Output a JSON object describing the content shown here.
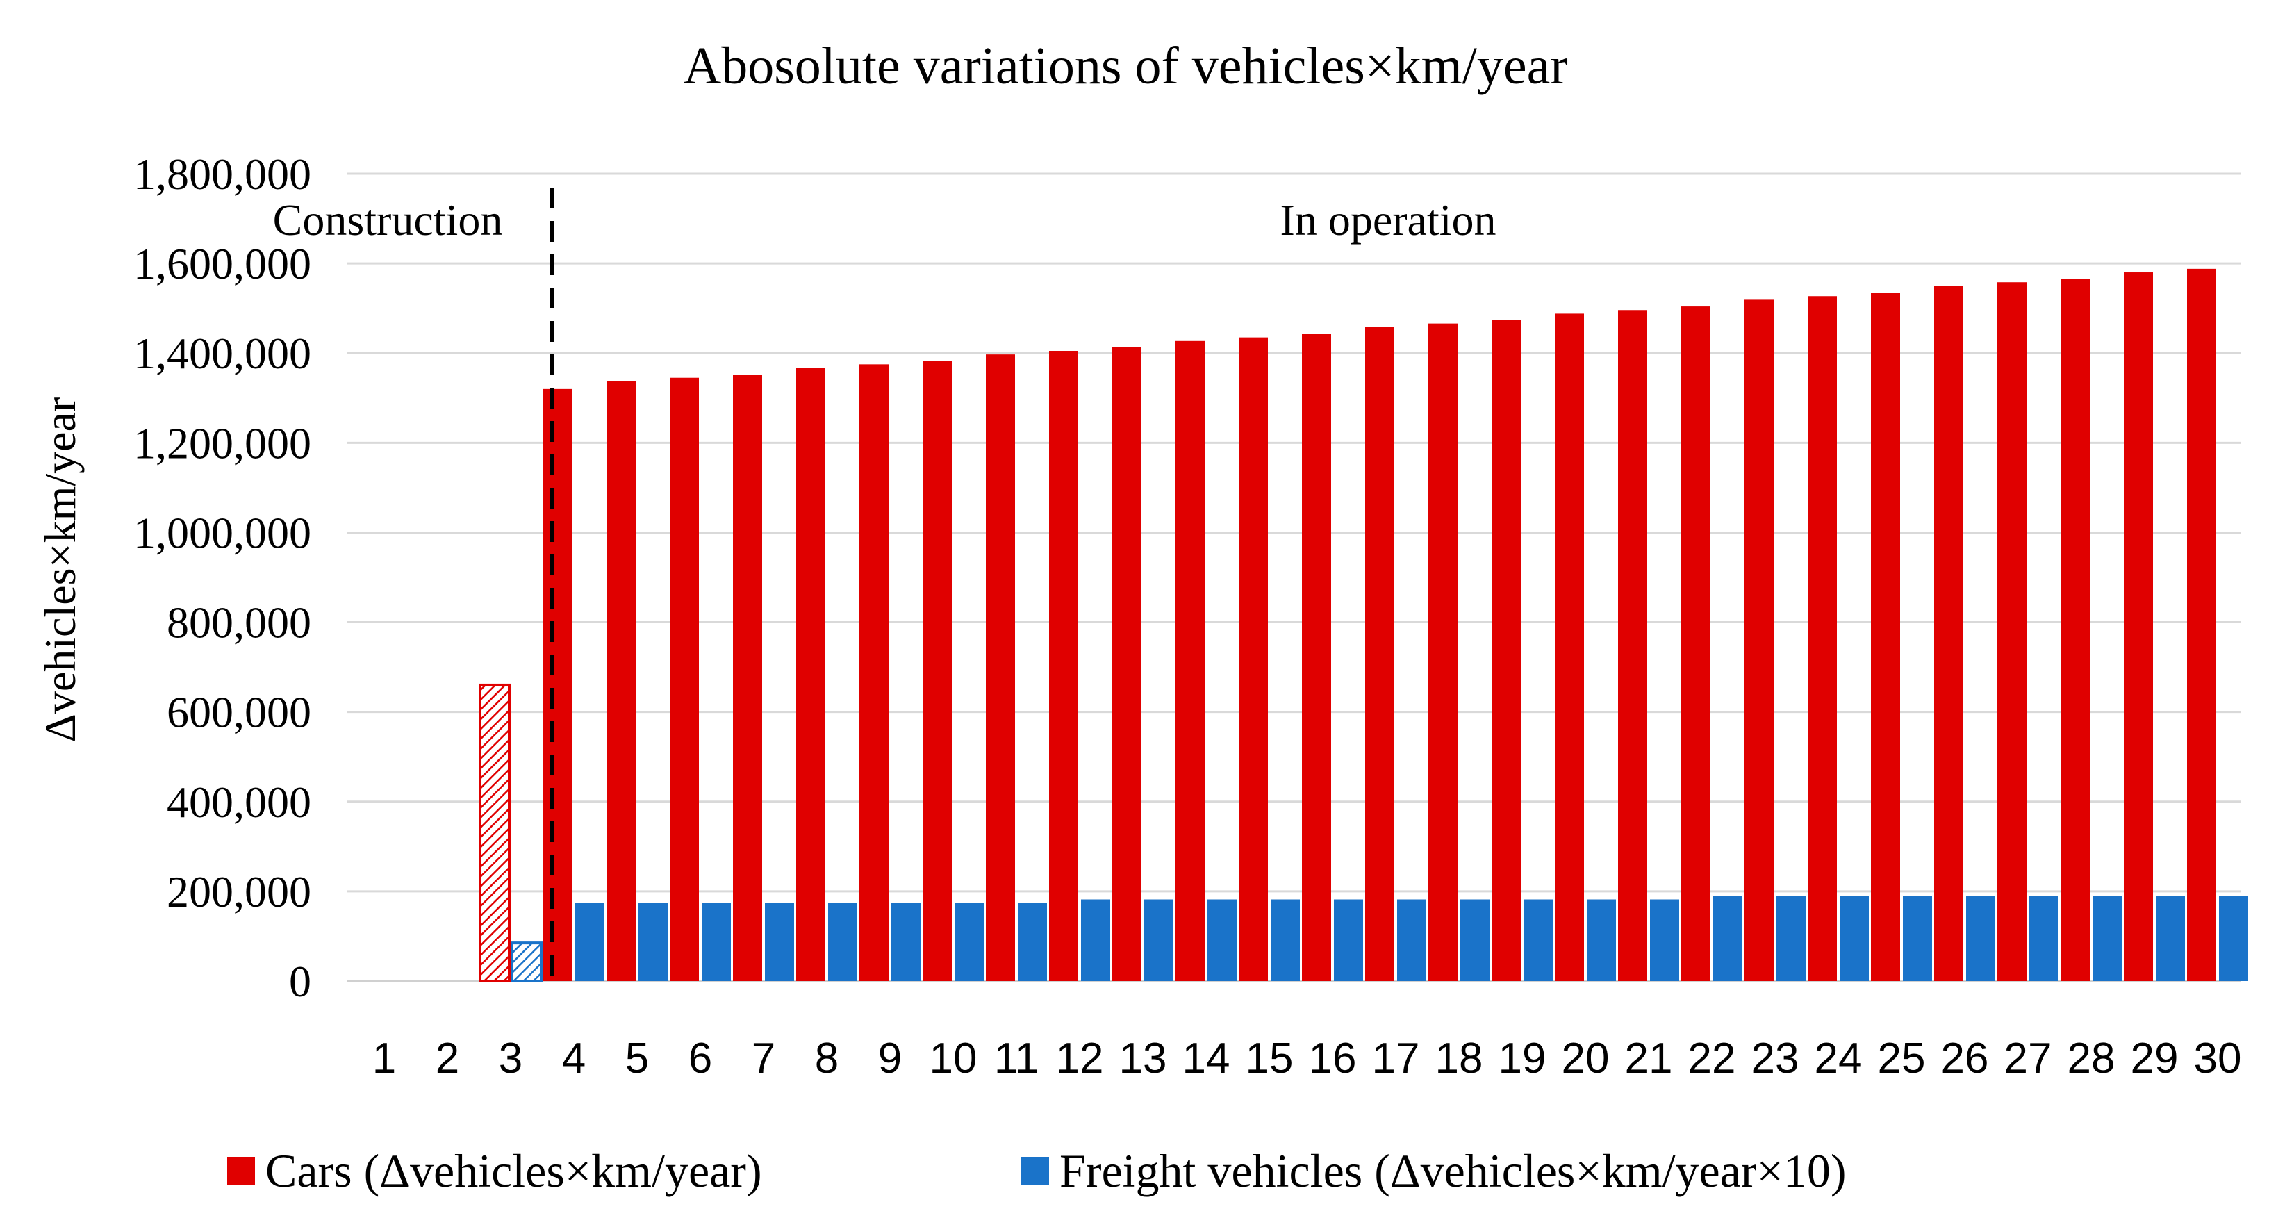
{
  "chart_data": {
    "type": "bar",
    "title": "Abosolute variations of vehicles×km/year",
    "ylabel": "Δvehicles×km/year",
    "xlabel": "",
    "ylim": [
      0,
      1800000
    ],
    "yticks": [
      0,
      200000,
      400000,
      600000,
      800000,
      1000000,
      1200000,
      1400000,
      1600000,
      1800000
    ],
    "ytick_labels": [
      "0",
      "200,000",
      "400,000",
      "600,000",
      "800,000",
      "1,000,000",
      "1,200,000",
      "1,400,000",
      "1,600,000",
      "1,800,000"
    ],
    "categories": [
      "1",
      "2",
      "3",
      "4",
      "5",
      "6",
      "7",
      "8",
      "9",
      "10",
      "11",
      "12",
      "13",
      "14",
      "15",
      "16",
      "17",
      "18",
      "19",
      "20",
      "21",
      "22",
      "23",
      "24",
      "25",
      "26",
      "27",
      "28",
      "29",
      "30"
    ],
    "series": [
      {
        "name": "Cars (Δvehicles×km/year)",
        "color": "#e00000",
        "values": [
          0,
          0,
          660000,
          1320000,
          1337000,
          1345000,
          1352000,
          1367000,
          1375000,
          1383000,
          1397000,
          1405000,
          1413000,
          1427000,
          1435000,
          1443000,
          1458000,
          1466000,
          1474000,
          1488000,
          1496000,
          1504000,
          1519000,
          1527000,
          1535000,
          1550000,
          1558000,
          1566000,
          1580000,
          1588000
        ]
      },
      {
        "name": "Freight vehicles (Δvehicles×km/year×10)",
        "color": "#1a73c9",
        "values": [
          0,
          0,
          85000,
          175000,
          175000,
          175000,
          175000,
          175000,
          175000,
          175000,
          175000,
          182000,
          182000,
          182000,
          182000,
          182000,
          182000,
          182000,
          182000,
          182000,
          182000,
          189000,
          189000,
          189000,
          189000,
          189000,
          189000,
          189000,
          189000,
          189000
        ]
      }
    ],
    "hatched_categories": [
      "3"
    ],
    "annotations": [
      {
        "text": "Construction",
        "phase": "construction"
      },
      {
        "text": "In operation",
        "phase": "operation"
      }
    ],
    "divider": {
      "style": "dashed",
      "between": [
        "3",
        "4"
      ]
    },
    "grid": true,
    "legend": "bottom"
  }
}
